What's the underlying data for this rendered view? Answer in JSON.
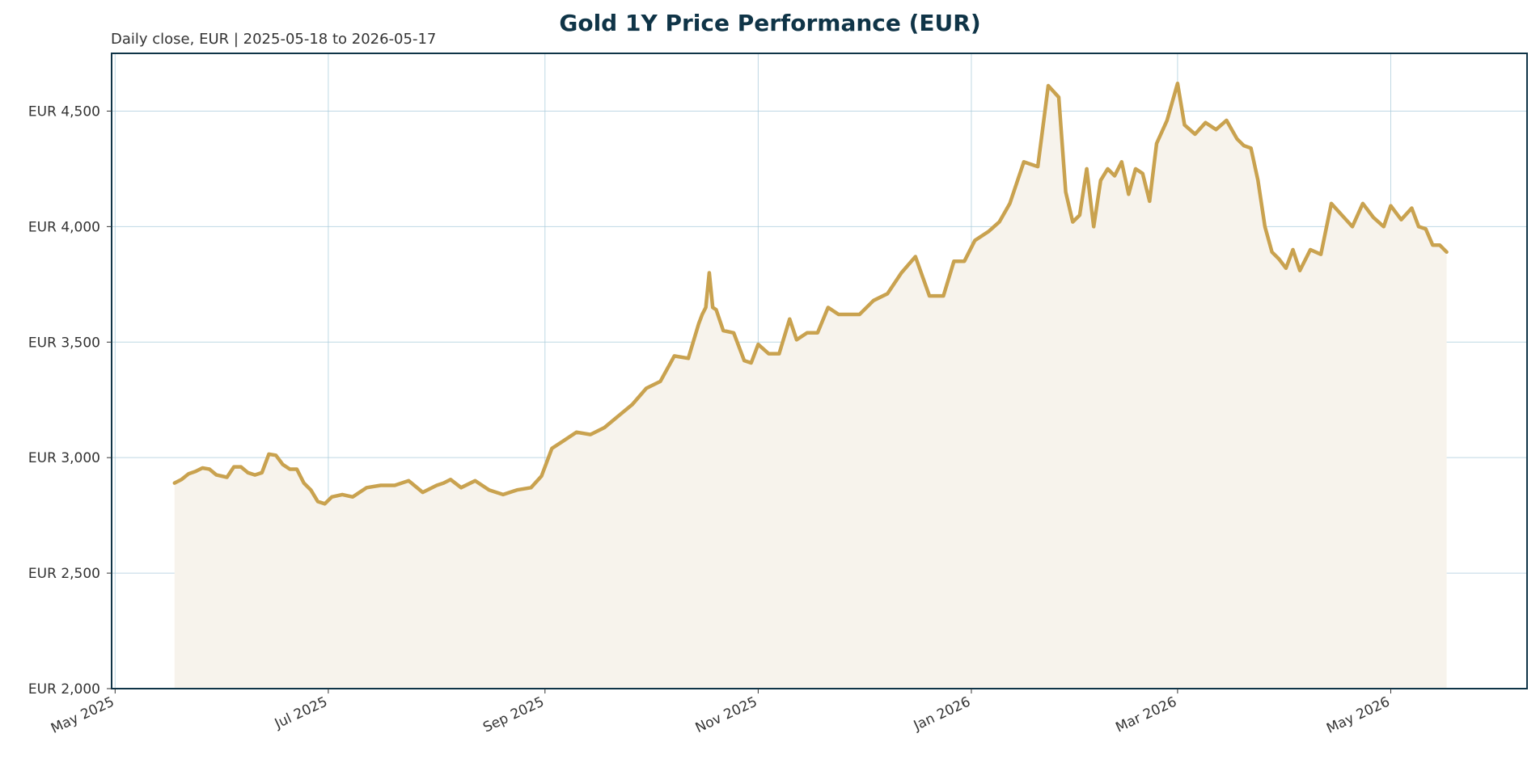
{
  "chart_data": {
    "type": "area",
    "title": "Gold 1Y Price Performance (EUR)",
    "subtitle": "Daily close, EUR | 2025-05-18 to 2026-05-17",
    "xlabel": "",
    "ylabel": "",
    "ylim": [
      2000,
      4750
    ],
    "xlim": [
      "2025-04-30",
      "2026-06-09"
    ],
    "grid": true,
    "legend": "none",
    "y_ticks": [
      {
        "value": 2000,
        "label": "EUR 2,000"
      },
      {
        "value": 2500,
        "label": "EUR 2,500"
      },
      {
        "value": 3000,
        "label": "EUR 3,000"
      },
      {
        "value": 3500,
        "label": "EUR 3,500"
      },
      {
        "value": 4000,
        "label": "EUR 4,000"
      },
      {
        "value": 4500,
        "label": "EUR 4,500"
      }
    ],
    "x_ticks": [
      {
        "date": "2025-05-01",
        "label": "May 2025"
      },
      {
        "date": "2025-07-01",
        "label": "Jul 2025"
      },
      {
        "date": "2025-09-01",
        "label": "Sep 2025"
      },
      {
        "date": "2025-11-01",
        "label": "Nov 2025"
      },
      {
        "date": "2026-01-01",
        "label": "Jan 2026"
      },
      {
        "date": "2026-03-01",
        "label": "Mar 2026"
      },
      {
        "date": "2026-05-01",
        "label": "May 2026"
      }
    ],
    "colors": {
      "line": "#c9a24f",
      "fill": "#f7f3ec",
      "grid": "#a9cbdb",
      "spine": "#0f3447",
      "title": "#0f3447"
    },
    "series": [
      {
        "x": [
          "2025-05-18",
          "2025-05-20",
          "2025-05-22",
          "2025-05-24",
          "2025-05-26",
          "2025-05-28",
          "2025-05-30",
          "2025-06-02",
          "2025-06-04",
          "2025-06-06",
          "2025-06-08",
          "2025-06-10",
          "2025-06-12",
          "2025-06-14",
          "2025-06-16",
          "2025-06-18",
          "2025-06-20",
          "2025-06-22",
          "2025-06-24",
          "2025-06-26",
          "2025-06-28",
          "2025-06-30",
          "2025-07-02",
          "2025-07-05",
          "2025-07-08",
          "2025-07-12",
          "2025-07-16",
          "2025-07-20",
          "2025-07-24",
          "2025-07-28",
          "2025-08-01",
          "2025-08-03",
          "2025-08-05",
          "2025-08-08",
          "2025-08-12",
          "2025-08-16",
          "2025-08-20",
          "2025-08-24",
          "2025-08-28",
          "2025-08-31",
          "2025-09-03",
          "2025-09-06",
          "2025-09-10",
          "2025-09-14",
          "2025-09-18",
          "2025-09-22",
          "2025-09-26",
          "2025-09-30",
          "2025-10-04",
          "2025-10-08",
          "2025-10-12",
          "2025-10-15",
          "2025-10-16",
          "2025-10-17",
          "2025-10-18",
          "2025-10-19",
          "2025-10-20",
          "2025-10-22",
          "2025-10-25",
          "2025-10-28",
          "2025-10-30",
          "2025-11-01",
          "2025-11-04",
          "2025-11-07",
          "2025-11-10",
          "2025-11-12",
          "2025-11-15",
          "2025-11-18",
          "2025-11-21",
          "2025-11-24",
          "2025-11-27",
          "2025-11-30",
          "2025-12-04",
          "2025-12-08",
          "2025-12-12",
          "2025-12-16",
          "2025-12-20",
          "2025-12-24",
          "2025-12-27",
          "2025-12-30",
          "2026-01-02",
          "2026-01-06",
          "2026-01-09",
          "2026-01-12",
          "2026-01-16",
          "2026-01-20",
          "2026-01-23",
          "2026-01-26",
          "2026-01-28",
          "2026-01-30",
          "2026-02-01",
          "2026-02-03",
          "2026-02-05",
          "2026-02-07",
          "2026-02-09",
          "2026-02-11",
          "2026-02-13",
          "2026-02-15",
          "2026-02-17",
          "2026-02-19",
          "2026-02-21",
          "2026-02-23",
          "2026-02-26",
          "2026-03-01",
          "2026-03-03",
          "2026-03-06",
          "2026-03-09",
          "2026-03-12",
          "2026-03-15",
          "2026-03-18",
          "2026-03-20",
          "2026-03-22",
          "2026-03-24",
          "2026-03-26",
          "2026-03-28",
          "2026-03-30",
          "2026-04-01",
          "2026-04-03",
          "2026-04-05",
          "2026-04-08",
          "2026-04-11",
          "2026-04-14",
          "2026-04-17",
          "2026-04-20",
          "2026-04-23",
          "2026-04-26",
          "2026-04-29",
          "2026-05-01",
          "2026-05-04",
          "2026-05-07",
          "2026-05-09",
          "2026-05-11",
          "2026-05-13",
          "2026-05-15",
          "2026-05-17"
        ],
        "values": [
          2890,
          2905,
          2930,
          2940,
          2955,
          2950,
          2925,
          2915,
          2960,
          2960,
          2935,
          2925,
          2935,
          3015,
          3010,
          2970,
          2950,
          2950,
          2890,
          2860,
          2810,
          2800,
          2830,
          2840,
          2830,
          2870,
          2880,
          2880,
          2900,
          2850,
          2880,
          2890,
          2905,
          2870,
          2900,
          2860,
          2840,
          2860,
          2870,
          2920,
          3040,
          3070,
          3110,
          3100,
          3130,
          3180,
          3230,
          3300,
          3330,
          3440,
          3430,
          3580,
          3620,
          3650,
          3800,
          3650,
          3640,
          3550,
          3540,
          3420,
          3410,
          3490,
          3450,
          3450,
          3600,
          3510,
          3540,
          3540,
          3650,
          3620,
          3620,
          3620,
          3680,
          3710,
          3800,
          3870,
          3700,
          3700,
          3850,
          3850,
          3940,
          3980,
          4020,
          4100,
          4280,
          4260,
          4610,
          4560,
          4150,
          4020,
          4050,
          4250,
          4000,
          4200,
          4250,
          4220,
          4280,
          4140,
          4250,
          4230,
          4110,
          4360,
          4460,
          4620,
          4440,
          4400,
          4450,
          4420,
          4460,
          4380,
          4350,
          4340,
          4200,
          4000,
          3890,
          3860,
          3820,
          3900,
          3810,
          3900,
          3880,
          4100,
          4050,
          4000,
          4100,
          4040,
          4000,
          4090,
          4030,
          4080,
          4000,
          3990,
          3920,
          3920,
          3890
        ]
      }
    ]
  }
}
